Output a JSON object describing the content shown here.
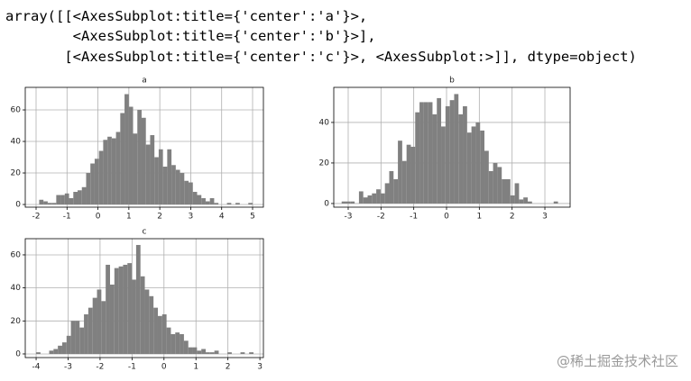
{
  "output_lines": [
    "array([[<AxesSubplot:title={'center':'a'}>,",
    "        <AxesSubplot:title={'center':'b'}>],",
    "       [<AxesSubplot:title={'center':'c'}>, <AxesSubplot:>]], dtype=object)"
  ],
  "watermark": "@稀土掘金技术社区",
  "chart_data": [
    {
      "type": "histogram",
      "title": "a",
      "color": "#808080",
      "grid": true,
      "bins": [
        -1.9,
        -1.762,
        -1.624,
        -1.486,
        -1.348,
        -1.21,
        -1.072,
        -0.934,
        -0.796,
        -0.658,
        -0.52,
        -0.382,
        -0.244,
        -0.106,
        0.032,
        0.17,
        0.308,
        0.446,
        0.584,
        0.722,
        0.86,
        0.998,
        1.136,
        1.274,
        1.412,
        1.55,
        1.688,
        1.826,
        1.964,
        2.102,
        2.24,
        2.378,
        2.516,
        2.654,
        2.792,
        2.93,
        3.068,
        3.206,
        3.344,
        3.482,
        3.62,
        3.758,
        3.896,
        4.034,
        4.172,
        4.31,
        4.448,
        4.586,
        4.724,
        4.862,
        5.0
      ],
      "values": [
        3,
        2,
        1,
        1,
        6,
        6,
        7,
        4,
        8,
        9,
        11,
        20,
        26,
        29,
        34,
        41,
        43,
        42,
        46,
        58,
        70,
        62,
        45,
        60,
        55,
        38,
        44,
        30,
        35,
        24,
        35,
        25,
        22,
        20,
        15,
        14,
        8,
        6,
        4,
        2,
        4,
        1,
        0,
        0,
        1,
        0,
        1,
        0,
        0,
        1
      ],
      "xlim": [
        -2.35,
        5.35
      ],
      "ylim": [
        -1.7,
        74.3
      ],
      "xticks": [
        -2,
        -1,
        0,
        1,
        2,
        3,
        4,
        5
      ],
      "yticks": [
        0,
        20,
        40,
        60
      ]
    },
    {
      "type": "histogram",
      "title": "b",
      "color": "#808080",
      "grid": true,
      "bins": [
        -3.2,
        -3.068,
        -2.936,
        -2.804,
        -2.672,
        -2.54,
        -2.408,
        -2.276,
        -2.144,
        -2.012,
        -1.88,
        -1.748,
        -1.616,
        -1.484,
        -1.352,
        -1.22,
        -1.088,
        -0.956,
        -0.824,
        -0.692,
        -0.56,
        -0.428,
        -0.296,
        -0.164,
        -0.032,
        0.1,
        0.232,
        0.364,
        0.496,
        0.628,
        0.76,
        0.892,
        1.024,
        1.156,
        1.288,
        1.42,
        1.552,
        1.684,
        1.816,
        1.948,
        2.08,
        2.212,
        2.344,
        2.476,
        2.608,
        2.74,
        2.872,
        3.004,
        3.136,
        3.268,
        3.4
      ],
      "values": [
        1,
        1,
        1,
        0,
        6,
        3,
        4,
        5,
        7,
        5,
        10,
        16,
        12,
        31,
        21,
        29,
        28,
        45,
        50,
        50,
        50,
        44,
        52,
        38,
        48,
        51,
        54,
        44,
        48,
        35,
        38,
        40,
        36,
        26,
        16,
        20,
        18,
        12,
        12,
        4,
        10,
        2,
        3,
        1,
        0,
        0,
        0,
        0,
        0,
        1
      ],
      "xlim": [
        -3.44,
        3.77
      ],
      "ylim": [
        -1.8,
        57.3
      ],
      "xticks": [
        -3,
        -2,
        -1,
        0,
        1,
        2,
        3
      ],
      "yticks": [
        0,
        20,
        40
      ]
    },
    {
      "type": "histogram",
      "title": "c",
      "color": "#808080",
      "grid": true,
      "bins": [
        -4,
        -3.864,
        -3.728,
        -3.592,
        -3.456,
        -3.32,
        -3.184,
        -3.048,
        -2.912,
        -2.776,
        -2.64,
        -2.504,
        -2.368,
        -2.232,
        -2.096,
        -1.96,
        -1.824,
        -1.688,
        -1.552,
        -1.416,
        -1.28,
        -1.144,
        -1.008,
        -0.872,
        -0.736,
        -0.6,
        -0.464,
        -0.328,
        -0.192,
        -0.056,
        0.08,
        0.216,
        0.352,
        0.488,
        0.624,
        0.76,
        0.896,
        1.032,
        1.168,
        1.304,
        1.44,
        1.576,
        1.712,
        1.848,
        1.984,
        2.12,
        2.256,
        2.392,
        2.528,
        2.664,
        2.8
      ],
      "values": [
        1,
        0,
        0,
        2,
        3,
        5,
        7,
        11,
        20,
        20,
        16,
        24,
        28,
        34,
        39,
        32,
        54,
        42,
        52,
        53,
        54,
        55,
        45,
        66,
        47,
        39,
        35,
        28,
        23,
        24,
        16,
        12,
        13,
        12,
        8,
        4,
        4,
        2,
        3,
        1,
        1,
        2,
        0,
        0,
        1,
        0,
        0,
        1,
        0,
        1
      ],
      "xlim": [
        -4.34,
        3.11
      ],
      "ylim": [
        -2.2,
        69.8
      ],
      "xticks": [
        -4,
        -3,
        -2,
        -1,
        0,
        1,
        2,
        3
      ],
      "yticks": [
        0,
        20,
        40,
        60
      ]
    }
  ]
}
